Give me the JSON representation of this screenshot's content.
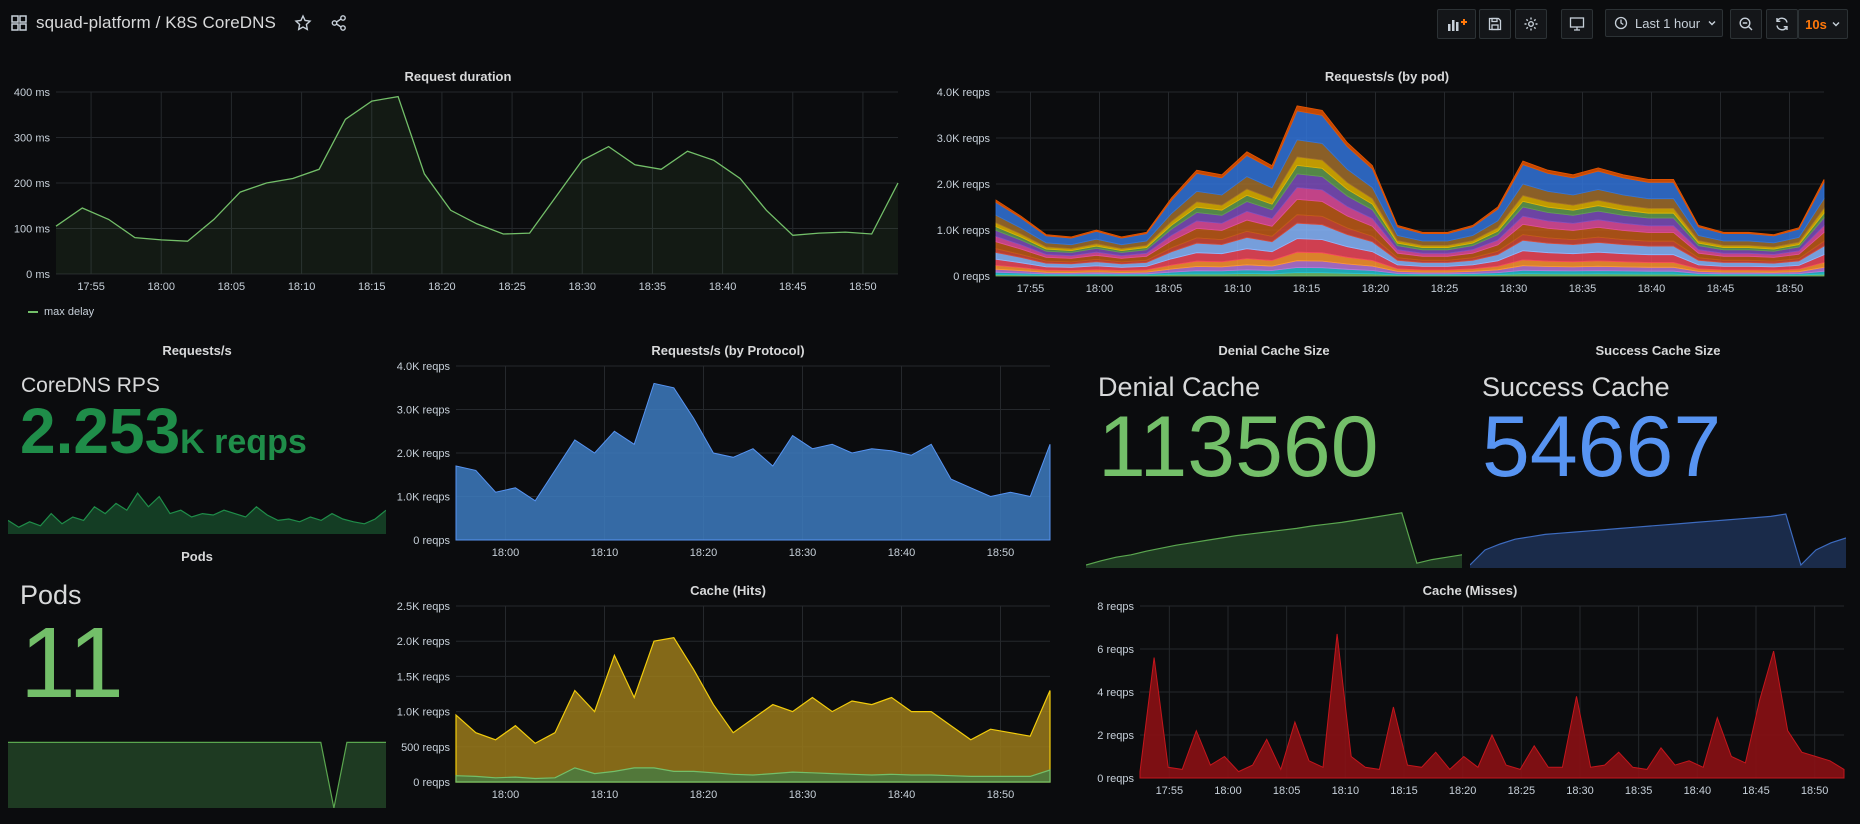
{
  "header": {
    "title": "squad-platform / K8S CoreDNS",
    "time_range": "Last 1 hour",
    "refresh": "10s"
  },
  "colors": {
    "green": "#73bf69",
    "dark_green": "#1b7a3a",
    "blue": "#5794f2",
    "steelblue": "#3d7bbf",
    "yellow": "#e0b400",
    "red": "#c4161c",
    "orange": "#ff780a"
  },
  "panels": {
    "request_duration": {
      "title": "Request duration",
      "legend": "max delay"
    },
    "requests_by_pod": {
      "title": "Requests/s (by pod)"
    },
    "requests_s": {
      "title": "Requests/s",
      "label": "CoreDNS RPS",
      "value": "2.253",
      "unit": "K reqps"
    },
    "requests_by_protocol": {
      "title": "Requests/s (by Protocol)"
    },
    "denial_cache": {
      "title": "Denial Cache Size",
      "label": "Denial Cache",
      "value": "113560"
    },
    "success_cache": {
      "title": "Success Cache Size",
      "label": "Success Cache",
      "value": "54667"
    },
    "pods": {
      "title": "Pods",
      "label": "Pods",
      "value": "11"
    },
    "cache_hits": {
      "title": "Cache (Hits)"
    },
    "cache_misses": {
      "title": "Cache (Misses)"
    }
  },
  "chart_data": [
    {
      "id": "request_duration",
      "type": "line",
      "title": "Request duration",
      "x": [
        "17:51",
        "17:53",
        "17:55",
        "17:57",
        "17:59",
        "18:01",
        "18:03",
        "18:05",
        "18:07",
        "18:09",
        "18:11",
        "18:13",
        "18:14",
        "18:15",
        "18:17",
        "18:19",
        "18:21",
        "18:23",
        "18:25",
        "18:27",
        "18:29",
        "18:30",
        "18:32",
        "18:34",
        "18:36",
        "18:38",
        "18:40",
        "18:42",
        "18:44",
        "18:45",
        "18:47",
        "18:49",
        "18:51"
      ],
      "x_ticks": [
        "17:55",
        "18:00",
        "18:05",
        "18:10",
        "18:15",
        "18:20",
        "18:25",
        "18:30",
        "18:35",
        "18:40",
        "18:45",
        "18:50"
      ],
      "y_ticks": [
        "0 ms",
        "100 ms",
        "200 ms",
        "300 ms",
        "400 ms"
      ],
      "ylim": [
        0,
        400
      ],
      "series": [
        {
          "name": "max delay",
          "values": [
            105,
            145,
            120,
            80,
            75,
            72,
            120,
            180,
            200,
            210,
            230,
            340,
            380,
            390,
            220,
            140,
            110,
            88,
            90,
            170,
            250,
            280,
            240,
            230,
            270,
            250,
            210,
            140,
            85,
            90,
            92,
            88,
            200
          ]
        }
      ]
    },
    {
      "id": "requests_by_pod",
      "type": "area",
      "title": "Requests/s (by pod)",
      "x_ticks": [
        "17:55",
        "18:00",
        "18:05",
        "18:10",
        "18:15",
        "18:20",
        "18:25",
        "18:30",
        "18:35",
        "18:40",
        "18:45",
        "18:50"
      ],
      "y_ticks": [
        "0 reqps",
        "1.0K reqps",
        "2.0K reqps",
        "3.0K reqps",
        "4.0K reqps"
      ],
      "ylim": [
        0,
        4000
      ],
      "total": [
        1650,
        1300,
        900,
        850,
        1000,
        850,
        950,
        1700,
        2300,
        2200,
        2700,
        2400,
        3700,
        3600,
        2900,
        2400,
        1100,
        950,
        950,
        1100,
        1500,
        2500,
        2300,
        2200,
        2350,
        2200,
        2100,
        2100,
        1100,
        950,
        950,
        900,
        1050,
        2100
      ]
    },
    {
      "id": "requests_by_protocol",
      "type": "area",
      "title": "Requests/s (by Protocol)",
      "x_ticks": [
        "18:00",
        "18:10",
        "18:20",
        "18:30",
        "18:40",
        "18:50"
      ],
      "y_ticks": [
        "0 reqps",
        "1.0K reqps",
        "2.0K reqps",
        "3.0K reqps",
        "4.0K reqps"
      ],
      "ylim": [
        0,
        4000
      ],
      "values": [
        1700,
        1600,
        1100,
        1200,
        900,
        1600,
        2300,
        2000,
        2500,
        2200,
        3600,
        3500,
        2800,
        2000,
        1900,
        2100,
        1700,
        2400,
        2100,
        2200,
        2000,
        2100,
        2050,
        1950,
        2200,
        1400,
        1200,
        1000,
        1100,
        1000,
        2200
      ]
    },
    {
      "id": "cache_hits",
      "type": "area",
      "title": "Cache (Hits)",
      "x_ticks": [
        "18:00",
        "18:10",
        "18:20",
        "18:30",
        "18:40",
        "18:50"
      ],
      "y_ticks": [
        "0 reqps",
        "500 reqps",
        "1.0K reqps",
        "1.5K reqps",
        "2.0K reqps",
        "2.5K reqps"
      ],
      "ylim": [
        0,
        2500
      ],
      "series": [
        {
          "name": "",
          "values": [
            950,
            700,
            600,
            800,
            550,
            700,
            1300,
            1000,
            1800,
            1200,
            2000,
            2050,
            1600,
            1100,
            700,
            900,
            1100,
            1000,
            1200,
            1000,
            1150,
            1100,
            1200,
            1000,
            1000,
            800,
            600,
            750,
            700,
            650,
            1300
          ]
        },
        {
          "name": "",
          "values": [
            90,
            80,
            60,
            70,
            50,
            60,
            200,
            120,
            150,
            200,
            200,
            150,
            150,
            130,
            110,
            100,
            120,
            140,
            130,
            120,
            110,
            100,
            110,
            100,
            100,
            90,
            80,
            80,
            80,
            80,
            170
          ]
        }
      ]
    },
    {
      "id": "cache_misses",
      "type": "area",
      "title": "Cache (Misses)",
      "x_ticks": [
        "17:55",
        "18:00",
        "18:05",
        "18:10",
        "18:15",
        "18:20",
        "18:25",
        "18:30",
        "18:35",
        "18:40",
        "18:45",
        "18:50"
      ],
      "y_ticks": [
        "0 reqps",
        "2 reqps",
        "4 reqps",
        "6 reqps",
        "8 reqps"
      ],
      "ylim": [
        0,
        8
      ],
      "values": [
        0.3,
        5.6,
        0.5,
        0.4,
        2.2,
        0.6,
        1.0,
        0.3,
        0.6,
        1.8,
        0.4,
        2.6,
        0.8,
        0.5,
        6.7,
        1.0,
        0.5,
        0.4,
        3.3,
        0.6,
        0.5,
        1.2,
        0.4,
        1.0,
        0.5,
        2.0,
        0.6,
        0.4,
        1.5,
        0.5,
        0.5,
        3.8,
        0.5,
        0.6,
        1.2,
        0.5,
        0.4,
        1.4,
        0.6,
        0.8,
        0.5,
        2.8,
        1.0,
        0.7,
        3.6,
        5.9,
        2.2,
        1.2,
        1.0,
        0.8,
        0.4
      ]
    }
  ]
}
